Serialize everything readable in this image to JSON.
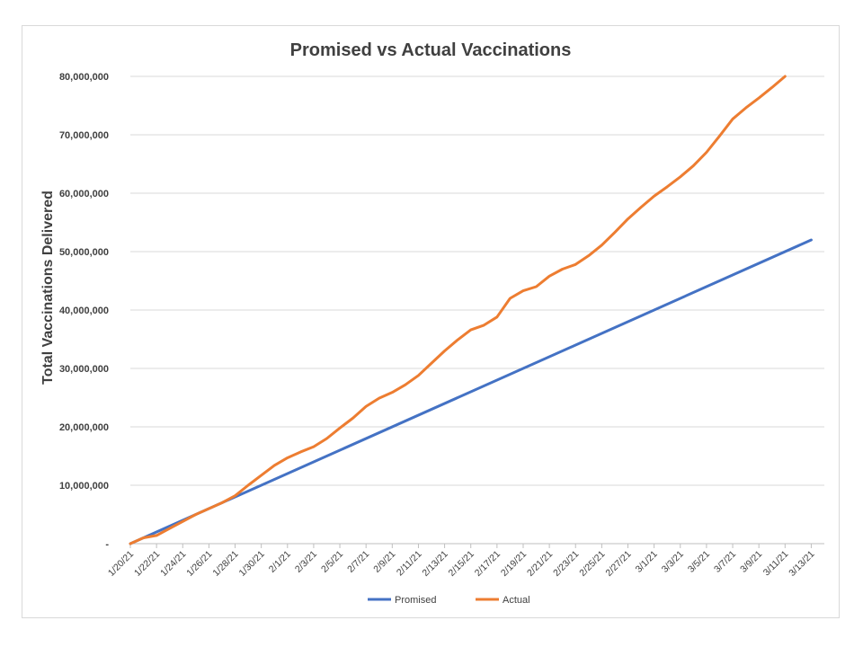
{
  "chart_data": {
    "type": "line",
    "title": "Promised vs Actual Vaccinations",
    "xlabel": "",
    "ylabel": "Total Vaccinations Delivered",
    "ylim": [
      0,
      80000000
    ],
    "grid": true,
    "legend_position": "bottom",
    "y_ticks": [
      {
        "value": 0,
        "label": "-"
      },
      {
        "value": 10000000,
        "label": "10,000,000"
      },
      {
        "value": 20000000,
        "label": "20,000,000"
      },
      {
        "value": 30000000,
        "label": "30,000,000"
      },
      {
        "value": 40000000,
        "label": "40,000,000"
      },
      {
        "value": 50000000,
        "label": "50,000,000"
      },
      {
        "value": 60000000,
        "label": "60,000,000"
      },
      {
        "value": 70000000,
        "label": "70,000,000"
      },
      {
        "value": 80000000,
        "label": "80,000,000"
      }
    ],
    "x_ticks": [
      "1/20/21",
      "1/22/21",
      "1/24/21",
      "1/26/21",
      "1/28/21",
      "1/30/21",
      "2/1/21",
      "2/3/21",
      "2/5/21",
      "2/7/21",
      "2/9/21",
      "2/11/21",
      "2/13/21",
      "2/15/21",
      "2/17/21",
      "2/19/21",
      "2/21/21",
      "2/23/21",
      "2/25/21",
      "2/27/21",
      "3/1/21",
      "3/3/21",
      "3/5/21",
      "3/7/21",
      "3/9/21",
      "3/11/21",
      "3/13/21"
    ],
    "x_range": [
      "1/20/21",
      "3/14/21"
    ],
    "series": [
      {
        "name": "Promised",
        "color": "#4472c4",
        "points": [
          [
            "1/20/21",
            0
          ],
          [
            "3/13/21",
            52000000
          ]
        ]
      },
      {
        "name": "Actual",
        "color": "#ed7d31",
        "points": [
          [
            "1/20/21",
            0
          ],
          [
            "1/21/21",
            1000000
          ],
          [
            "1/22/21",
            1400000
          ],
          [
            "1/23/21",
            2600000
          ],
          [
            "1/24/21",
            3800000
          ],
          [
            "1/25/21",
            5000000
          ],
          [
            "1/26/21",
            6000000
          ],
          [
            "1/27/21",
            7000000
          ],
          [
            "1/28/21",
            8200000
          ],
          [
            "1/29/21",
            10000000
          ],
          [
            "1/30/21",
            11700000
          ],
          [
            "1/31/21",
            13400000
          ],
          [
            "2/1/21",
            14700000
          ],
          [
            "2/2/21",
            15700000
          ],
          [
            "2/3/21",
            16600000
          ],
          [
            "2/4/21",
            18000000
          ],
          [
            "2/5/21",
            19800000
          ],
          [
            "2/6/21",
            21500000
          ],
          [
            "2/7/21",
            23500000
          ],
          [
            "2/8/21",
            24900000
          ],
          [
            "2/9/21",
            25900000
          ],
          [
            "2/10/21",
            27200000
          ],
          [
            "2/11/21",
            28800000
          ],
          [
            "2/12/21",
            30900000
          ],
          [
            "2/13/21",
            33000000
          ],
          [
            "2/14/21",
            34900000
          ],
          [
            "2/15/21",
            36600000
          ],
          [
            "2/16/21",
            37400000
          ],
          [
            "2/17/21",
            38800000
          ],
          [
            "2/18/21",
            42000000
          ],
          [
            "2/19/21",
            43300000
          ],
          [
            "2/20/21",
            44000000
          ],
          [
            "2/21/21",
            45800000
          ],
          [
            "2/22/21",
            47000000
          ],
          [
            "2/23/21",
            47800000
          ],
          [
            "2/24/21",
            49300000
          ],
          [
            "2/25/21",
            51100000
          ],
          [
            "2/26/21",
            53300000
          ],
          [
            "2/27/21",
            55600000
          ],
          [
            "2/28/21",
            57600000
          ],
          [
            "3/1/21",
            59500000
          ],
          [
            "3/2/21",
            61100000
          ],
          [
            "3/3/21",
            62800000
          ],
          [
            "3/4/21",
            64700000
          ],
          [
            "3/5/21",
            67000000
          ],
          [
            "3/6/21",
            69800000
          ],
          [
            "3/7/21",
            72700000
          ],
          [
            "3/8/21",
            74600000
          ],
          [
            "3/9/21",
            76300000
          ],
          [
            "3/10/21",
            78100000
          ],
          [
            "3/11/21",
            80000000
          ]
        ]
      }
    ]
  }
}
